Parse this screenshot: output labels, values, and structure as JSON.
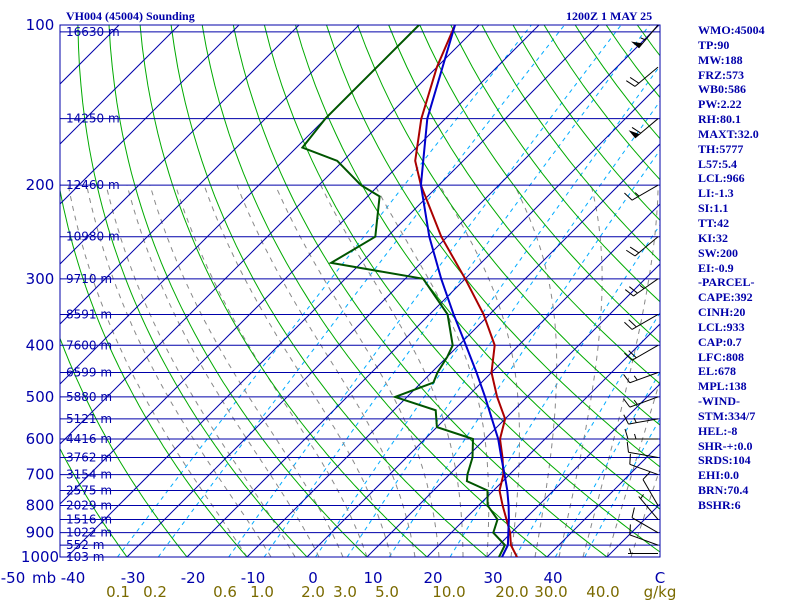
{
  "header": {
    "station": "VH004 (45004) Sounding",
    "valid_time": "1200Z  1 MAY 25"
  },
  "indices": [
    "WMO:45004",
    "TP:90",
    "MW:188",
    "FRZ:573",
    "WB0:586",
    "PW:2.22",
    "RH:80.1",
    "MAXT:32.0",
    "TH:5777",
    "L57:5.4",
    "LCL:966",
    "LI:-1.3",
    "SI:1.1",
    "TT:42",
    "KI:32",
    "SW:200",
    "EI:-0.9",
    "-PARCEL-",
    "CAPE:392",
    "CINH:20",
    "LCL:933",
    "CAP:0.7",
    "LFC:808",
    "EL:678",
    "MPL:138",
    "-WIND-",
    "STM:334/7",
    "HEL:-8",
    "SHR-+:0.0",
    "SRDS:104",
    "EHI:0.0",
    "BRN:70.4",
    "BSHR:6"
  ],
  "colors": {
    "isobar": "#0000aa",
    "isotherm": "#0000aa",
    "dry_adiabat": "#00aa00",
    "moist_adiabat": "#888888",
    "mixing_ratio": "#00aaff",
    "temperature": "#aa0000",
    "dewpoint": "#005500",
    "parcel": "#0000cc",
    "barb": "#000000"
  },
  "chart_data": {
    "type": "line",
    "subtype": "skew-T log-P sounding",
    "title": "VH004 (45004) Sounding",
    "yaxis_unit": "mb",
    "ylim": [
      1000,
      100
    ],
    "xlim": [
      -50,
      50
    ],
    "pressure_levels": [
      100,
      200,
      300,
      400,
      500,
      600,
      700,
      800,
      900,
      1000
    ],
    "temperature_ticks": [
      -50,
      -40,
      -30,
      -20,
      -10,
      0,
      10,
      20,
      30,
      40
    ],
    "temperature_unit": "C",
    "height_labels": [
      {
        "p": 103,
        "label": "16630 m"
      },
      {
        "p": 150,
        "label": "14250 m"
      },
      {
        "p": 200,
        "label": "12460 m"
      },
      {
        "p": 250,
        "label": "10980 m"
      },
      {
        "p": 300,
        "label": "9710 m"
      },
      {
        "p": 350,
        "label": "8591 m"
      },
      {
        "p": 400,
        "label": "7600 m"
      },
      {
        "p": 450,
        "label": "6599 m"
      },
      {
        "p": 500,
        "label": "5880 m"
      },
      {
        "p": 550,
        "label": "5121 m"
      },
      {
        "p": 600,
        "label": "4416 m"
      },
      {
        "p": 650,
        "label": "3762 m"
      },
      {
        "p": 700,
        "label": "3154 m"
      },
      {
        "p": 750,
        "label": "2575 m"
      },
      {
        "p": 800,
        "label": "2029 m"
      },
      {
        "p": 850,
        "label": "1516 m"
      },
      {
        "p": 900,
        "label": "1022 m"
      },
      {
        "p": 950,
        "label": "552 m"
      },
      {
        "p": 1000,
        "label": "103 m"
      }
    ],
    "mixing_ratio_labels": [
      "0.1",
      "0.2",
      "0.6",
      "1.0",
      "2.0",
      "3.0",
      "5.0",
      "10.0",
      "20.0",
      "30.0",
      "40.0"
    ],
    "mixing_ratio_unit": "g/kg",
    "series": [
      {
        "name": "Temperature",
        "points": [
          [
            1000,
            25
          ],
          [
            950,
            22
          ],
          [
            900,
            19.8
          ],
          [
            850,
            17
          ],
          [
            800,
            14
          ],
          [
            750,
            11
          ],
          [
            700,
            9
          ],
          [
            650,
            6
          ],
          [
            600,
            2.5
          ],
          [
            550,
            0
          ],
          [
            500,
            -5
          ],
          [
            450,
            -10
          ],
          [
            400,
            -14
          ],
          [
            350,
            -21
          ],
          [
            300,
            -30
          ],
          [
            250,
            -41
          ],
          [
            200,
            -53
          ],
          [
            180,
            -58
          ],
          [
            150,
            -64
          ],
          [
            120,
            -70
          ],
          [
            100,
            -74
          ]
        ]
      },
      {
        "name": "Dewpoint",
        "points": [
          [
            1000,
            22
          ],
          [
            950,
            21
          ],
          [
            900,
            17
          ],
          [
            850,
            15.5
          ],
          [
            800,
            11.5
          ],
          [
            750,
            9
          ],
          [
            720,
            4
          ],
          [
            700,
            3
          ],
          [
            650,
            1
          ],
          [
            600,
            -2
          ],
          [
            570,
            -10
          ],
          [
            530,
            -13
          ],
          [
            500,
            -22
          ],
          [
            470,
            -18
          ],
          [
            450,
            -19
          ],
          [
            420,
            -20
          ],
          [
            400,
            -21
          ],
          [
            350,
            -27
          ],
          [
            300,
            -37
          ],
          [
            280,
            -55
          ],
          [
            250,
            -52
          ],
          [
            210,
            -58
          ],
          [
            200,
            -63
          ],
          [
            180,
            -71
          ],
          [
            170,
            -79
          ],
          [
            150,
            -80
          ],
          [
            130,
            -80
          ],
          [
            100,
            -80
          ]
        ]
      },
      {
        "name": "Parcel",
        "points": [
          [
            1000,
            22.5
          ],
          [
            950,
            21.5
          ],
          [
            900,
            19.5
          ],
          [
            850,
            17.4
          ],
          [
            800,
            15
          ],
          [
            750,
            12.3
          ],
          [
            700,
            9.2
          ],
          [
            650,
            5.8
          ],
          [
            600,
            2.2
          ],
          [
            550,
            -2.2
          ],
          [
            500,
            -7
          ],
          [
            450,
            -12.5
          ],
          [
            400,
            -18.8
          ],
          [
            350,
            -26
          ],
          [
            300,
            -34
          ],
          [
            250,
            -43
          ],
          [
            200,
            -53
          ],
          [
            150,
            -63
          ],
          [
            100,
            -74
          ]
        ]
      }
    ],
    "wind_barbs": [
      {
        "p": 985,
        "dir": 270,
        "kt": 5
      },
      {
        "p": 950,
        "dir": 290,
        "kt": 10
      },
      {
        "p": 900,
        "dir": 300,
        "kt": 10
      },
      {
        "p": 850,
        "dir": 320,
        "kt": 5
      },
      {
        "p": 800,
        "dir": 330,
        "kt": 10
      },
      {
        "p": 700,
        "dir": 290,
        "kt": 10
      },
      {
        "p": 650,
        "dir": 280,
        "kt": 10
      },
      {
        "p": 600,
        "dir": 270,
        "kt": 15
      },
      {
        "p": 550,
        "dir": 260,
        "kt": 15
      },
      {
        "p": 500,
        "dir": 250,
        "kt": 15
      },
      {
        "p": 450,
        "dir": 250,
        "kt": 15
      },
      {
        "p": 400,
        "dir": 240,
        "kt": 20
      },
      {
        "p": 350,
        "dir": 240,
        "kt": 20
      },
      {
        "p": 300,
        "dir": 235,
        "kt": 25
      },
      {
        "p": 250,
        "dir": 230,
        "kt": 20
      },
      {
        "p": 200,
        "dir": 240,
        "kt": 15
      },
      {
        "p": 150,
        "dir": 230,
        "kt": 60
      },
      {
        "p": 120,
        "dir": 230,
        "kt": 20
      },
      {
        "p": 100,
        "dir": 220,
        "kt": 55
      }
    ]
  }
}
